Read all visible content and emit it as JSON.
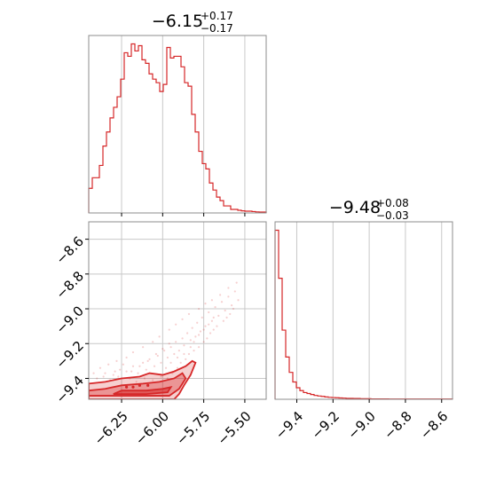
{
  "chart_data": {
    "type": "corner",
    "color": "#d62728",
    "grid": true,
    "panels": [
      {
        "id": "hist-param1",
        "type": "step-histogram",
        "title": {
          "median": "−6.15",
          "plus": "+0.17",
          "minus": "−0.17"
        },
        "xlim": [
          -6.45,
          -5.37
        ],
        "x_ticks": [
          -6.25,
          -6.0,
          -5.75,
          -5.5
        ],
        "y_ticks_shown": false,
        "bin_start": -6.45,
        "bin_width": 0.0216,
        "counts": [
          0.14,
          0.2,
          0.2,
          0.27,
          0.38,
          0.46,
          0.54,
          0.6,
          0.66,
          0.76,
          0.91,
          0.89,
          0.96,
          0.92,
          0.95,
          0.87,
          0.85,
          0.79,
          0.76,
          0.74,
          0.69,
          0.73,
          0.94,
          0.88,
          0.89,
          0.89,
          0.83,
          0.74,
          0.72,
          0.56,
          0.46,
          0.35,
          0.28,
          0.25,
          0.17,
          0.13,
          0.09,
          0.07,
          0.04,
          0.04,
          0.02,
          0.02,
          0.015,
          0.012,
          0.01,
          0.01,
          0.008,
          0.006,
          0.005,
          0.005
        ]
      },
      {
        "id": "hist-param2",
        "type": "step-histogram",
        "title": {
          "median": "−9.48",
          "plus": "+0.08",
          "minus": "−0.03"
        },
        "xlim": [
          -9.52,
          -8.54
        ],
        "x_ticks": [
          -9.4,
          -9.2,
          -9.0,
          -8.8,
          -8.6
        ],
        "x_ticklabels": [
          "−9.4",
          "−9.2",
          "−9.0",
          "−8.8",
          "−8.6"
        ],
        "y_ticks_shown": false,
        "bin_start": -9.52,
        "bin_width": 0.0196,
        "counts": [
          0.88,
          0.63,
          0.36,
          0.22,
          0.14,
          0.09,
          0.06,
          0.045,
          0.035,
          0.03,
          0.025,
          0.02,
          0.017,
          0.015,
          0.012,
          0.01,
          0.009,
          0.008,
          0.007,
          0.006,
          0.005,
          0.005,
          0.004,
          0.004,
          0.003,
          0.003,
          0.003,
          0.002,
          0.002,
          0.002,
          0.002,
          0.002,
          0.001,
          0.001,
          0.001,
          0.001,
          0.001,
          0.001,
          0.001,
          0.001,
          0.001,
          0.001,
          0.001,
          0.001,
          0.001,
          0.001,
          0.001,
          0.001,
          0.001,
          0.001
        ]
      },
      {
        "id": "joint",
        "type": "contour-scatter",
        "xlim": [
          -6.45,
          -5.37
        ],
        "ylim": [
          -9.52,
          -8.5
        ],
        "x_ticks": [
          -6.25,
          -6.0,
          -5.75,
          -5.5
        ],
        "x_ticklabels": [
          "−6.25",
          "−6.00",
          "−5.75",
          "−5.50"
        ],
        "y_ticks": [
          -8.6,
          -8.8,
          -9.0,
          -9.2,
          -9.4
        ],
        "y_ticklabels": [
          "−8.6",
          "−8.8",
          "−9.0",
          "−9.2",
          "−9.4"
        ],
        "contour_outer": [
          [
            -6.45,
            -9.52
          ],
          [
            -6.45,
            -9.43
          ],
          [
            -6.35,
            -9.42
          ],
          [
            -6.25,
            -9.4
          ],
          [
            -6.14,
            -9.39
          ],
          [
            -6.08,
            -9.37
          ],
          [
            -6.0,
            -9.38
          ],
          [
            -5.93,
            -9.36
          ],
          [
            -5.86,
            -9.33
          ],
          [
            -5.82,
            -9.3
          ],
          [
            -5.8,
            -9.31
          ],
          [
            -5.83,
            -9.38
          ],
          [
            -5.87,
            -9.44
          ],
          [
            -5.9,
            -9.49
          ],
          [
            -5.93,
            -9.52
          ]
        ],
        "contour_mid": [
          [
            -6.45,
            -9.5
          ],
          [
            -6.45,
            -9.47
          ],
          [
            -6.35,
            -9.46
          ],
          [
            -6.25,
            -9.44
          ],
          [
            -6.12,
            -9.43
          ],
          [
            -6.02,
            -9.42
          ],
          [
            -5.93,
            -9.4
          ],
          [
            -5.88,
            -9.37
          ],
          [
            -5.86,
            -9.4
          ],
          [
            -5.9,
            -9.46
          ],
          [
            -5.96,
            -9.5
          ],
          [
            -6.2,
            -9.5
          ]
        ],
        "contour_inner": [
          [
            -6.3,
            -9.49
          ],
          [
            -6.25,
            -9.47
          ],
          [
            -6.1,
            -9.47
          ],
          [
            -6.0,
            -9.46
          ],
          [
            -5.95,
            -9.45
          ],
          [
            -5.97,
            -9.48
          ],
          [
            -6.1,
            -9.49
          ]
        ],
        "scatter_points": [
          [
            -6.3,
            -9.38
          ],
          [
            -6.26,
            -9.35
          ],
          [
            -6.22,
            -9.36
          ],
          [
            -6.18,
            -9.33
          ],
          [
            -6.15,
            -9.37
          ],
          [
            -6.12,
            -9.31
          ],
          [
            -6.1,
            -9.35
          ],
          [
            -6.08,
            -9.29
          ],
          [
            -6.05,
            -9.33
          ],
          [
            -6.03,
            -9.27
          ],
          [
            -6.01,
            -9.31
          ],
          [
            -5.99,
            -9.24
          ],
          [
            -5.97,
            -9.28
          ],
          [
            -5.95,
            -9.22
          ],
          [
            -5.93,
            -9.26
          ],
          [
            -5.92,
            -9.19
          ],
          [
            -5.9,
            -9.24
          ],
          [
            -5.88,
            -9.17
          ],
          [
            -5.87,
            -9.21
          ],
          [
            -5.85,
            -9.14
          ],
          [
            -5.83,
            -9.18
          ],
          [
            -5.82,
            -9.11
          ],
          [
            -5.8,
            -9.16
          ],
          [
            -5.79,
            -9.08
          ],
          [
            -5.77,
            -9.13
          ],
          [
            -5.76,
            -9.05
          ],
          [
            -5.74,
            -9.1
          ],
          [
            -5.72,
            -9.02
          ],
          [
            -5.7,
            -9.07
          ],
          [
            -5.68,
            -8.99
          ],
          [
            -5.66,
            -9.04
          ],
          [
            -5.64,
            -8.96
          ],
          [
            -5.62,
            -9.01
          ],
          [
            -5.6,
            -8.93
          ],
          [
            -5.58,
            -8.98
          ],
          [
            -5.56,
            -8.9
          ],
          [
            -5.54,
            -8.95
          ],
          [
            -5.55,
            -8.85
          ],
          [
            -5.6,
            -8.88
          ],
          [
            -5.65,
            -8.92
          ],
          [
            -5.7,
            -8.95
          ],
          [
            -5.74,
            -8.97
          ],
          [
            -5.78,
            -9.0
          ],
          [
            -5.84,
            -9.03
          ],
          [
            -5.88,
            -9.06
          ],
          [
            -5.92,
            -9.09
          ],
          [
            -5.96,
            -9.12
          ],
          [
            -6.02,
            -9.16
          ],
          [
            -6.06,
            -9.19
          ],
          [
            -6.12,
            -9.22
          ],
          [
            -6.18,
            -9.25
          ],
          [
            -6.22,
            -9.28
          ],
          [
            -6.28,
            -9.3
          ],
          [
            -6.33,
            -9.32
          ],
          [
            -6.38,
            -9.34
          ],
          [
            -6.42,
            -9.37
          ],
          [
            -6.4,
            -9.4
          ],
          [
            -6.36,
            -9.39
          ],
          [
            -6.32,
            -9.41
          ],
          [
            -6.27,
            -9.39
          ],
          [
            -6.2,
            -9.4
          ],
          [
            -6.16,
            -9.42
          ],
          [
            -6.11,
            -9.4
          ],
          [
            -6.06,
            -9.41
          ],
          [
            -6.01,
            -9.39
          ],
          [
            -5.97,
            -9.4
          ],
          [
            -5.94,
            -9.37
          ],
          [
            -5.91,
            -9.34
          ],
          [
            -5.89,
            -9.31
          ],
          [
            -5.86,
            -9.29
          ],
          [
            -5.84,
            -9.26
          ],
          [
            -5.81,
            -9.24
          ],
          [
            -5.78,
            -9.22
          ],
          [
            -5.75,
            -9.19
          ],
          [
            -5.73,
            -9.17
          ],
          [
            -5.71,
            -9.14
          ],
          [
            -5.69,
            -9.12
          ],
          [
            -5.67,
            -9.1
          ],
          [
            -5.63,
            -9.07
          ],
          [
            -5.61,
            -9.05
          ],
          [
            -5.59,
            -9.03
          ],
          [
            -5.57,
            -9.0
          ],
          [
            -5.96,
            -9.2
          ],
          [
            -6.0,
            -9.23
          ],
          [
            -6.04,
            -9.26
          ],
          [
            -6.09,
            -9.3
          ],
          [
            -6.14,
            -9.33
          ],
          [
            -6.19,
            -9.36
          ],
          [
            -6.24,
            -9.32
          ],
          [
            -6.29,
            -9.36
          ],
          [
            -6.35,
            -9.37
          ],
          [
            -5.98,
            -9.34
          ],
          [
            -5.95,
            -9.31
          ],
          [
            -5.91,
            -9.28
          ],
          [
            -5.87,
            -9.26
          ],
          [
            -5.83,
            -9.22
          ],
          [
            -5.81,
            -9.19
          ],
          [
            -5.78,
            -9.15
          ],
          [
            -5.75,
            -9.12
          ],
          [
            -5.72,
            -9.09
          ],
          [
            -5.69,
            -9.05
          ]
        ],
        "density_dots": [
          [
            -6.22,
            -9.45
          ],
          [
            -6.18,
            -9.45
          ],
          [
            -6.14,
            -9.44
          ],
          [
            -6.09,
            -9.44
          ]
        ]
      }
    ]
  }
}
